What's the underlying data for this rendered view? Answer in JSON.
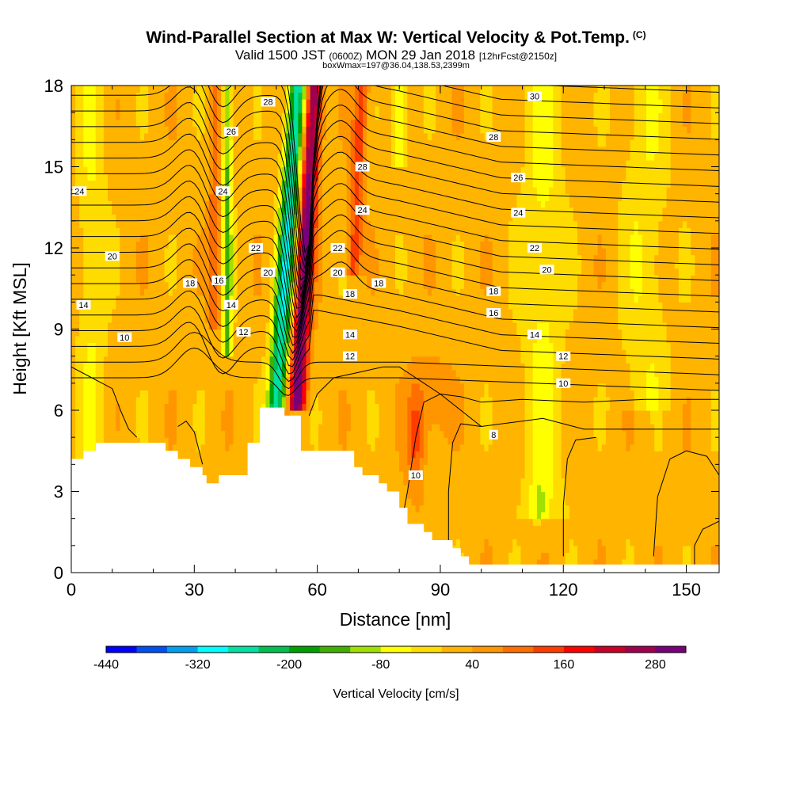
{
  "chart_data": {
    "type": "heatmap",
    "title": "Wind-Parallel Section at Max W: Vertical Velocity & Pot.Temp.",
    "title_units": "(C)",
    "subtitle_main": "Valid 1500 JST",
    "subtitle_z": "(0600Z)",
    "subtitle_date": "MON 29 Jan 2018",
    "subtitle_fcst": "[12hrFcst@2150z]",
    "subtitle2": "boxWmax=197@36.04,138.53,2399m",
    "xlabel": "Distance [nm]",
    "ylabel": "Height [Kft MSL]",
    "xlim": [
      0,
      158
    ],
    "ylim": [
      0,
      18
    ],
    "x_ticks": [
      0,
      30,
      60,
      90,
      120,
      150
    ],
    "y_ticks": [
      0,
      3,
      6,
      9,
      12,
      15,
      18
    ],
    "colorbar": {
      "label": "Vertical Velocity [cm/s]",
      "tick_labels": [
        "-440",
        "-320",
        "-200",
        "-80",
        "40",
        "160",
        "280"
      ],
      "tick_values": [
        -440,
        -320,
        -200,
        -80,
        40,
        160,
        280
      ],
      "range": [
        -440,
        320
      ],
      "colors": [
        "#0000ff",
        "#0050f0",
        "#00a0f0",
        "#00ffff",
        "#00e0a0",
        "#00c050",
        "#00a000",
        "#40b000",
        "#a0e000",
        "#ffff00",
        "#ffdc00",
        "#ffb400",
        "#ff9600",
        "#ff6e00",
        "#ff3c00",
        "#ff0000",
        "#c80028",
        "#a00050",
        "#780078"
      ]
    },
    "terrain_kft": [
      [
        0,
        4.2
      ],
      [
        3,
        4.5
      ],
      [
        6,
        4.8
      ],
      [
        16,
        4.8
      ],
      [
        23,
        4.5
      ],
      [
        26,
        4.2
      ],
      [
        29,
        3.9
      ],
      [
        32,
        3.6
      ],
      [
        33,
        3.3
      ],
      [
        36,
        3.6
      ],
      [
        42,
        3.6
      ],
      [
        43,
        4.8
      ],
      [
        45,
        4.8
      ],
      [
        46,
        6.1
      ],
      [
        51,
        6.1
      ],
      [
        52,
        5.8
      ],
      [
        55,
        5.8
      ],
      [
        56,
        4.5
      ],
      [
        68,
        4.5
      ],
      [
        69,
        3.9
      ],
      [
        71,
        3.6
      ],
      [
        75,
        3.3
      ],
      [
        77,
        3.0
      ],
      [
        80,
        2.4
      ],
      [
        82,
        1.8
      ],
      [
        86,
        1.5
      ],
      [
        88,
        1.2
      ],
      [
        93,
        0.9
      ],
      [
        95,
        0.6
      ],
      [
        97,
        0.3
      ],
      [
        158,
        0.3
      ]
    ],
    "theta_contour_labels": [
      {
        "text": "28",
        "x": 48,
        "y": 17.4
      },
      {
        "text": "26",
        "x": 39,
        "y": 16.3
      },
      {
        "text": "24",
        "x": 37,
        "y": 14.1
      },
      {
        "text": "24",
        "x": 2,
        "y": 14.1
      },
      {
        "text": "22",
        "x": 45,
        "y": 12.0
      },
      {
        "text": "20",
        "x": 48,
        "y": 11.1
      },
      {
        "text": "20",
        "x": 10,
        "y": 11.7
      },
      {
        "text": "18",
        "x": 29,
        "y": 10.7
      },
      {
        "text": "16",
        "x": 36,
        "y": 10.8
      },
      {
        "text": "14",
        "x": 39,
        "y": 9.9
      },
      {
        "text": "12",
        "x": 42,
        "y": 8.9
      },
      {
        "text": "14",
        "x": 3,
        "y": 9.9
      },
      {
        "text": "10",
        "x": 13,
        "y": 8.7
      },
      {
        "text": "28",
        "x": 71,
        "y": 15.0
      },
      {
        "text": "24",
        "x": 71,
        "y": 13.4
      },
      {
        "text": "22",
        "x": 65,
        "y": 12.0
      },
      {
        "text": "20",
        "x": 65,
        "y": 11.1
      },
      {
        "text": "18",
        "x": 68,
        "y": 10.3
      },
      {
        "text": "18",
        "x": 75,
        "y": 10.7
      },
      {
        "text": "14",
        "x": 68,
        "y": 8.8
      },
      {
        "text": "12",
        "x": 68,
        "y": 8.0
      },
      {
        "text": "30",
        "x": 113,
        "y": 17.6
      },
      {
        "text": "28",
        "x": 103,
        "y": 16.1
      },
      {
        "text": "26",
        "x": 109,
        "y": 14.6
      },
      {
        "text": "24",
        "x": 109,
        "y": 13.3
      },
      {
        "text": "22",
        "x": 113,
        "y": 12.0
      },
      {
        "text": "20",
        "x": 116,
        "y": 11.2
      },
      {
        "text": "18",
        "x": 103,
        "y": 10.4
      },
      {
        "text": "16",
        "x": 103,
        "y": 9.6
      },
      {
        "text": "14",
        "x": 113,
        "y": 8.8
      },
      {
        "text": "12",
        "x": 120,
        "y": 8.0
      },
      {
        "text": "10",
        "x": 120,
        "y": 7.0
      },
      {
        "text": "8",
        "x": 103,
        "y": 5.1
      },
      {
        "text": "10",
        "x": 84,
        "y": 3.6
      }
    ]
  }
}
